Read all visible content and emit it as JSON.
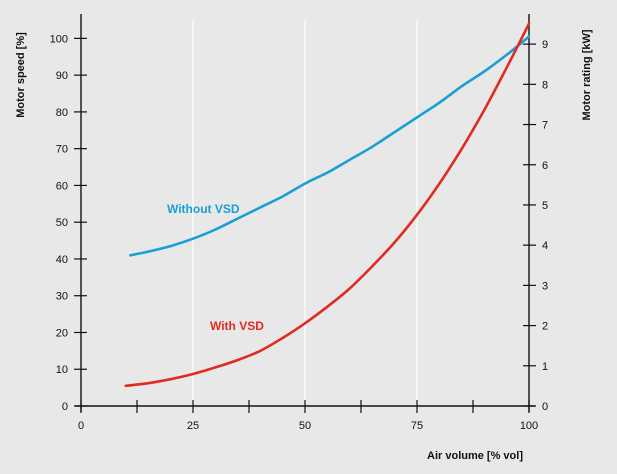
{
  "chart_data": {
    "type": "line",
    "title": "",
    "xlabel": "Air volume [% vol]",
    "ylabel_left": "Motor speed [%]",
    "ylabel_right": "Motor rating [kW]",
    "xlim": [
      0,
      100
    ],
    "ylim_left": [
      0,
      105
    ],
    "ylim_right": [
      0,
      9.6
    ],
    "xticks": [
      0,
      25,
      50,
      75,
      100
    ],
    "yticks_left": [
      0,
      10,
      20,
      30,
      40,
      50,
      60,
      70,
      80,
      90,
      100
    ],
    "yticks_right": [
      0,
      1,
      2,
      3,
      4,
      5,
      6,
      7,
      8,
      9
    ],
    "grid": "vertical",
    "legend": "inline labels",
    "series": [
      {
        "name": "Without VSD",
        "color": "#1a9fd4",
        "axis": "left",
        "x": [
          11,
          15,
          20,
          25,
          30,
          35,
          40,
          45,
          50,
          55,
          60,
          65,
          70,
          75,
          80,
          85,
          90,
          95,
          100
        ],
        "y": [
          41,
          42,
          43.5,
          45.5,
          48,
          51,
          54,
          57,
          60.5,
          63.5,
          67,
          70.5,
          74.5,
          78.5,
          82.5,
          87,
          91,
          95.5,
          100.5
        ]
      },
      {
        "name": "With VSD",
        "color": "#e02b20",
        "axis": "left",
        "x": [
          10,
          15,
          20,
          25,
          30,
          35,
          40,
          45,
          50,
          55,
          60,
          65,
          70,
          75,
          80,
          85,
          90,
          95,
          100
        ],
        "y": [
          5.5,
          6.2,
          7.3,
          8.7,
          10.5,
          12.5,
          15,
          18.5,
          22.5,
          27,
          32,
          38,
          44.5,
          52,
          60.5,
          70,
          80.5,
          92,
          104
        ]
      }
    ]
  }
}
